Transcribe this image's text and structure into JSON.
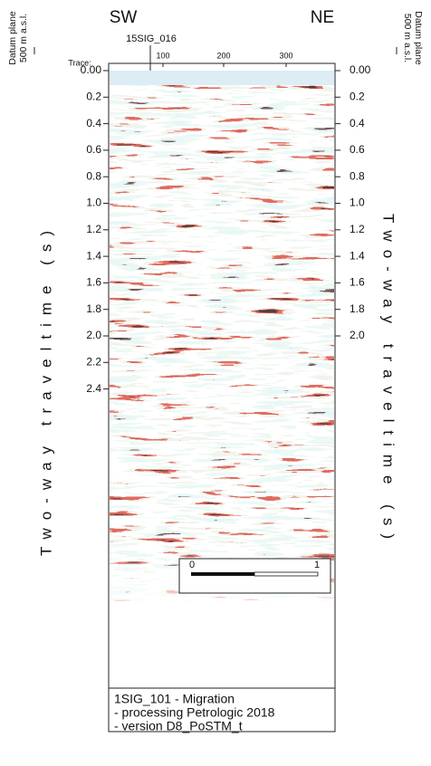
{
  "header": {
    "left_direction": "SW",
    "right_direction": "NE",
    "well_label": "15SIG_016",
    "trace_label": "Trace:",
    "trace_ticks": [
      "100",
      "200",
      "300"
    ]
  },
  "left_axis": {
    "datum": [
      "Datum plane",
      "500 m a.s.l."
    ],
    "title": "Two-way traveltime (s)",
    "ticks": [
      "0.00",
      "0.2",
      "0.4",
      "0.6",
      "0.8",
      "1.0",
      "1.2",
      "1.4",
      "1.6",
      "1.8",
      "2.0",
      "2.2",
      "2.4"
    ]
  },
  "right_axis": {
    "datum": [
      "Datum plane",
      "500 m a.s.l."
    ],
    "title": "Two-way traveltime (s)",
    "ticks": [
      "0.00",
      "0.2",
      "0.4",
      "0.6",
      "0.8",
      "1.0",
      "1.2",
      "1.4",
      "1.6",
      "1.8",
      "2.0"
    ]
  },
  "scale_bar": {
    "labels": [
      "0",
      "1"
    ]
  },
  "legend": {
    "lines": [
      "1SIG_101 - Migration",
      "- processing Petrologic 2018",
      "- version D8_PoSTM_t"
    ]
  }
}
